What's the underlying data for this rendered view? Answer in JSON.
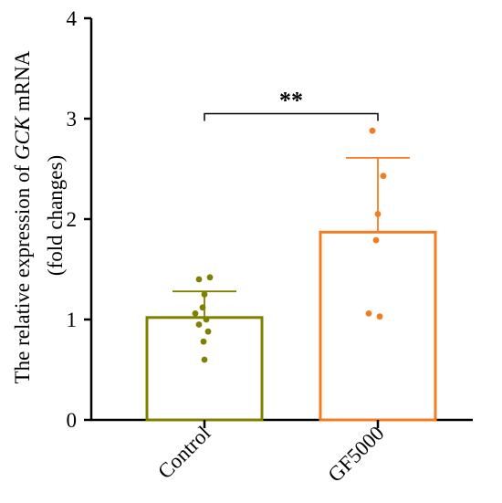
{
  "chart_data": {
    "type": "bar",
    "ylabel": {
      "line1_prefix": "The relative expression of ",
      "gene": "GCK",
      "line1_suffix": " mRNA",
      "line2": "(fold changes)"
    },
    "ylim": [
      0,
      4
    ],
    "yticks": [
      "0",
      "1",
      "2",
      "3",
      "4"
    ],
    "categories": [
      "Control",
      "GF5000"
    ],
    "bars": [
      {
        "category": "Control",
        "mean": 1.02,
        "sd": 0.26,
        "color": "#808000",
        "points": [
          1.4,
          1.42,
          1.25,
          1.12,
          1.06,
          1.0,
          0.95,
          0.88,
          0.78,
          0.6
        ]
      },
      {
        "category": "GF5000",
        "mean": 1.87,
        "sd": 0.74,
        "color": "#F47C20",
        "points": [
          2.88,
          2.43,
          2.05,
          1.79,
          1.06,
          1.03
        ]
      }
    ],
    "significance": {
      "label": "**",
      "between": [
        "Control",
        "GF5000"
      ],
      "y": 3.05
    },
    "grid": false,
    "legend": "none"
  }
}
